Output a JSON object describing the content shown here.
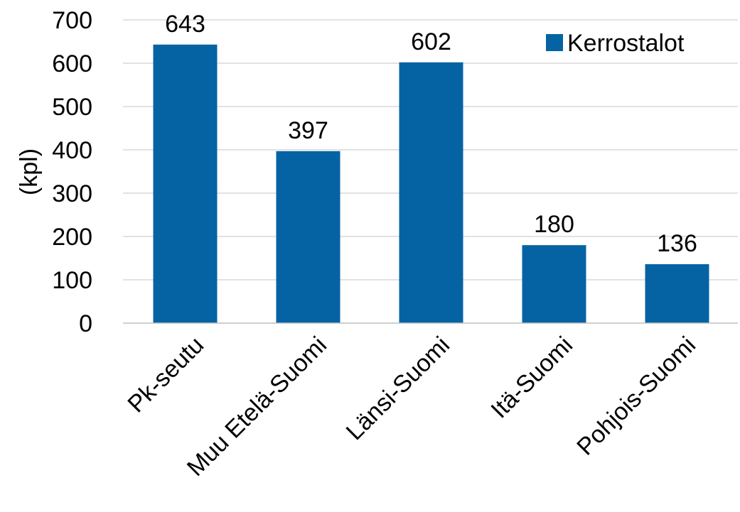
{
  "chart_data": {
    "type": "bar",
    "title": "",
    "xlabel": "",
    "ylabel": "(kpl)",
    "categories": [
      "Pk-seutu",
      "Muu Etelä-Suomi",
      "Länsi-Suomi",
      "Itä-Suomi",
      "Pohjois-Suomi"
    ],
    "series": [
      {
        "name": "Kerrostalot",
        "values": [
          643,
          397,
          602,
          180,
          136
        ],
        "color": "#0563A4"
      }
    ],
    "ylim": [
      0,
      700
    ],
    "yticks": [
      "0",
      "100",
      "200",
      "300",
      "400",
      "500",
      "600",
      "700"
    ],
    "grid": true,
    "legend_position": "top-right",
    "data_labels": true
  }
}
